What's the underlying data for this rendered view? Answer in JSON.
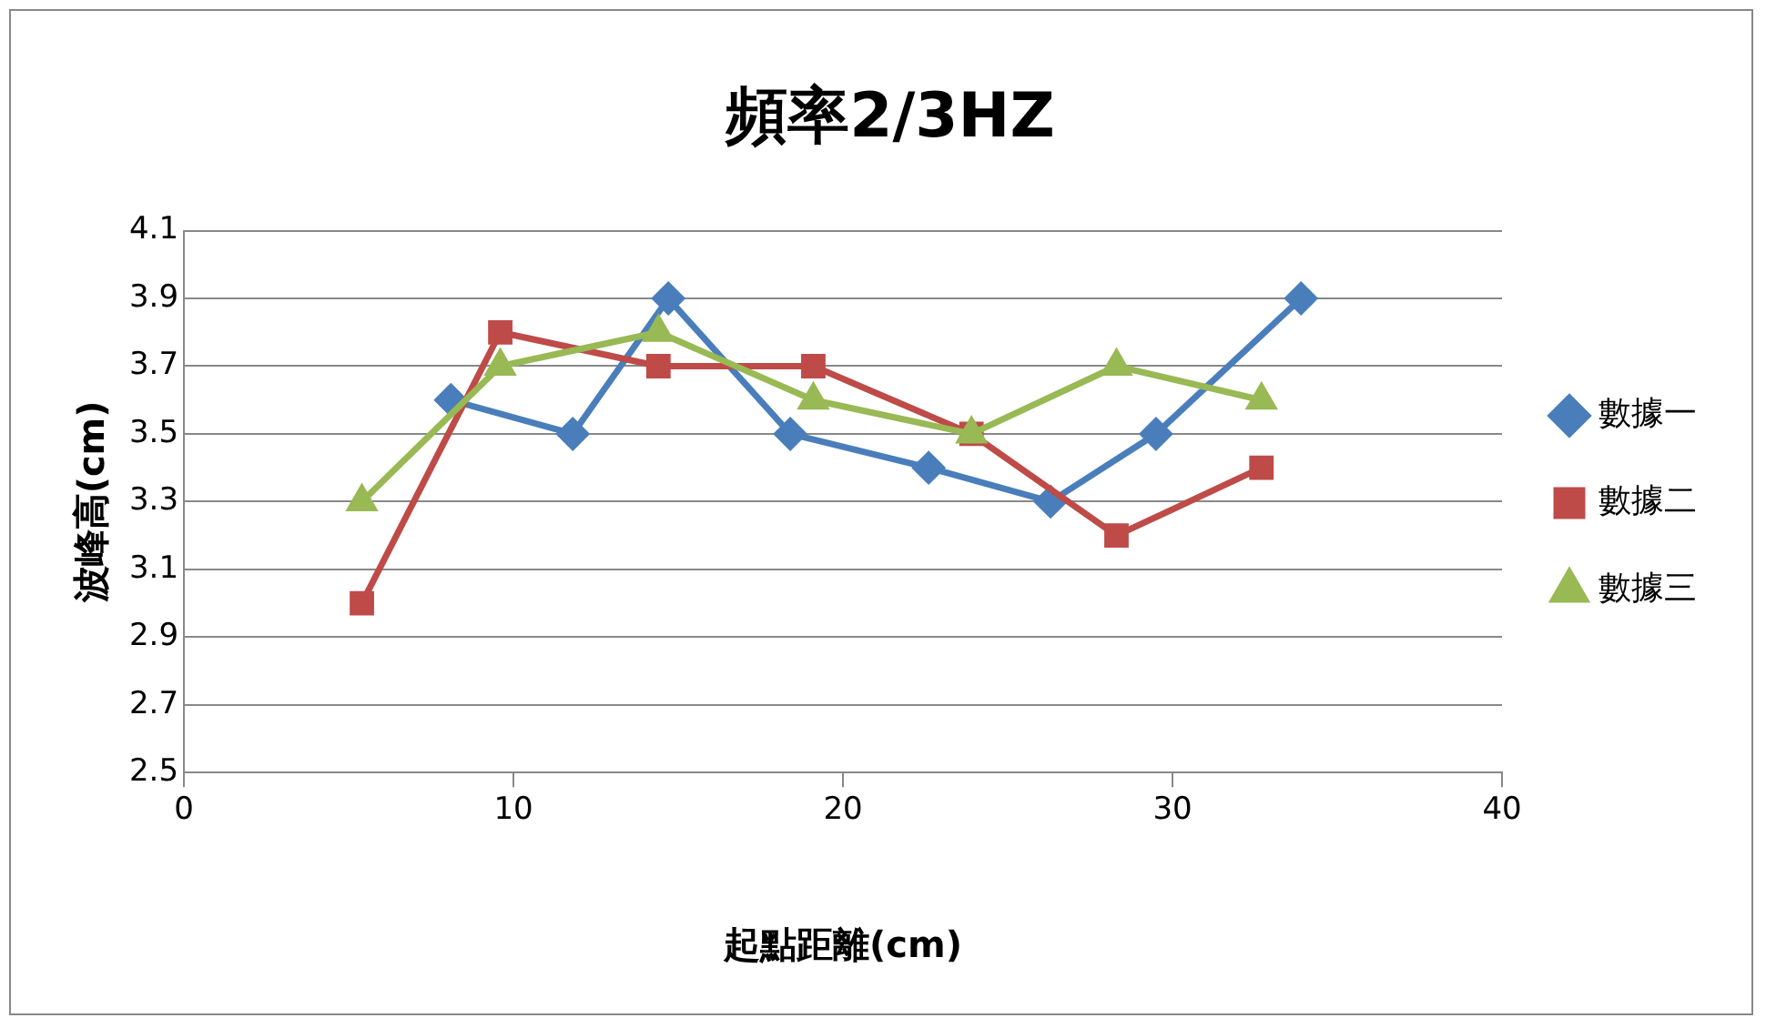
{
  "chart_data": {
    "type": "line",
    "title": "頻率2/3HZ",
    "xlabel": "起點距離(cm)",
    "ylabel": "波峰高(cm)",
    "xlim": [
      0,
      40
    ],
    "xticks": [
      0,
      10,
      20,
      30,
      40
    ],
    "ylim": [
      2.5,
      4.1
    ],
    "yticks": [
      2.5,
      2.7,
      2.9,
      3.1,
      3.3,
      3.5,
      3.7,
      3.9,
      4.1
    ],
    "grid": "y",
    "legend": "right",
    "series": [
      {
        "name": "數據一",
        "color": "#4a7ebb",
        "marker": "diamond",
        "x": [
          8.1,
          11.8,
          14.7,
          18.4,
          22.6,
          26.3,
          29.5,
          33.9
        ],
        "values": [
          3.6,
          3.5,
          3.9,
          3.5,
          3.4,
          3.3,
          3.5,
          3.9
        ]
      },
      {
        "name": "數據二",
        "color": "#be4b48",
        "marker": "square",
        "x": [
          5.4,
          9.6,
          14.4,
          19.1,
          23.9,
          28.3,
          32.7
        ],
        "values": [
          3.0,
          3.8,
          3.7,
          3.7,
          3.5,
          3.2,
          3.4
        ]
      },
      {
        "name": "數據三",
        "color": "#98b954",
        "marker": "triangle",
        "x": [
          5.4,
          9.6,
          14.4,
          19.1,
          23.9,
          28.3,
          32.7
        ],
        "values": [
          3.3,
          3.7,
          3.8,
          3.6,
          3.5,
          3.7,
          3.6
        ]
      }
    ]
  }
}
